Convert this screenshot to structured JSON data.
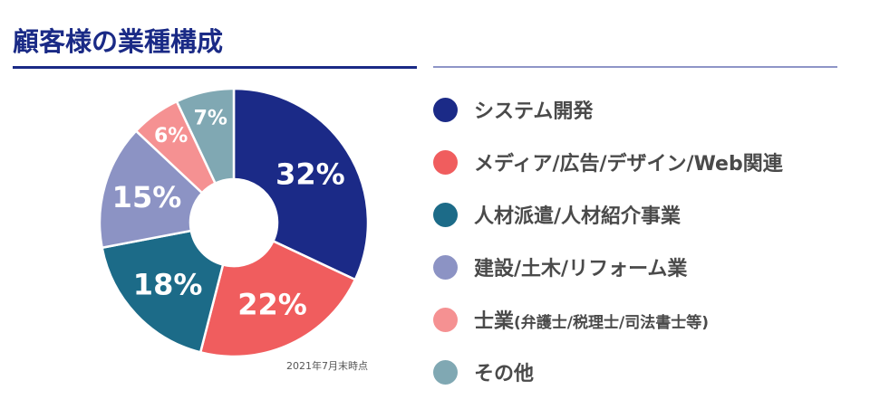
{
  "header": {
    "title": "顧客様の業種構成"
  },
  "note": "2021年7月末時点",
  "legend": [
    {
      "label": "システム開発",
      "color": "#1b2a87"
    },
    {
      "label": "メディア/広告/デザイン/Web関連",
      "color": "#f05d5e"
    },
    {
      "label": "人材派遣/人材紹介事業",
      "color": "#1c6b88"
    },
    {
      "label": "建設/土木/リフォーム業",
      "color": "#8c93c4"
    },
    {
      "label_main": "士業",
      "label_sub": "(弁護士/税理士/司法書士等)",
      "label": "士業(弁護士/税理士/司法書士等)",
      "color": "#f59192"
    },
    {
      "label": "その他",
      "color": "#80a8b3"
    }
  ],
  "chart_data": {
    "type": "pie",
    "subtype": "donut",
    "title": "顧客様の業種構成",
    "annotation": "2021年7月末時点",
    "categories": [
      "システム開発",
      "メディア/広告/デザイン/Web関連",
      "人材派遣/人材紹介事業",
      "建設/土木/リフォーム業",
      "士業(弁護士/税理士/司法書士等)",
      "その他"
    ],
    "values": [
      32,
      22,
      18,
      15,
      6,
      7
    ],
    "labels": [
      "32%",
      "22%",
      "18%",
      "15%",
      "6%",
      "7%"
    ],
    "colors": [
      "#1b2a87",
      "#f05d5e",
      "#1c6b88",
      "#8c93c4",
      "#f59192",
      "#80a8b3"
    ],
    "start_angle": "12 o'clock, clockwise",
    "legend_position": "right",
    "unit": "%"
  }
}
